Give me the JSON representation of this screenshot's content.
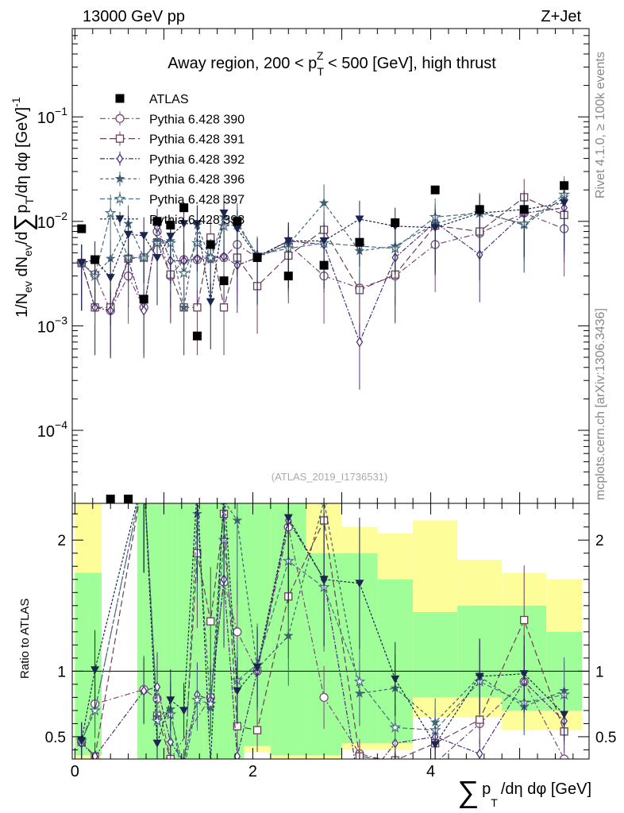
{
  "header": {
    "left": "13000 GeV pp",
    "right": "Z+Jet",
    "side_top": "Rivet 4.1.0, ≥ 100k events",
    "side_bottom": "mcplots.cern.ch [arXiv:1306.3436]",
    "watermark": "(ATLAS_2019_I1736531)"
  },
  "colors": {
    "atlas": "#000000",
    "p390": "#7b4a7a",
    "p391": "#6b3f55",
    "p392": "#4b2f7a",
    "p396": "#3e6072",
    "p397": "#4a6f7f",
    "p398": "#1c2450",
    "band_green": "#9ffe97",
    "band_yellow": "#fdfd9a"
  },
  "chart_data": {
    "type": "scatter",
    "title": "Away region, 200 < p_T^Z < 500 [GeV], high thrust",
    "title_parts": {
      "pre": "Away region, 200 < p",
      "sub": "T",
      "sup": "Z",
      "post": " < 500 [GeV], high thrust"
    },
    "xlabel": "∑ p_T /dη dφ [GeV]",
    "xlabel_parts": {
      "sum": "∑",
      "p": "p",
      "sub": "T",
      "rest": "/dη dφ [GeV]"
    },
    "ylabel_main": "1/N_ev dN_ev/d∑ p_T /dη dφ [GeV]^-1",
    "ylabel_parts": {
      "a": "1/N",
      "a_sub": "ev",
      "b": " dN",
      "b_sub": "ev",
      "c": "/d",
      "sum": "∑",
      "p": "p",
      "p_sub": "T",
      "d": "/dη dφ  [GeV]",
      "exp": "-1"
    },
    "ylabel_ratio": "Ratio to ATLAS",
    "xlim": [
      -0.03,
      5.78
    ],
    "ylim_main": [
      2e-05,
      0.7
    ],
    "ylim_ratio": [
      0.33,
      2.28
    ],
    "yscale_main": "log",
    "main_ticks": [
      {
        "value": 0.1,
        "base": "10",
        "exp": "−1"
      },
      {
        "value": 0.01,
        "base": "10",
        "exp": "−2"
      },
      {
        "value": 0.001,
        "base": "10",
        "exp": "−3"
      },
      {
        "value": 0.0001,
        "base": "10",
        "exp": "−4"
      }
    ],
    "x_ticks": [
      0,
      2,
      4
    ],
    "x_tick_labels": [
      "0",
      "2",
      "4"
    ],
    "ratio_ticks": [
      0.5,
      1,
      2
    ],
    "ratio_tick_labels": [
      "0.5",
      "1",
      "2"
    ],
    "legend_position": "top-left",
    "bins": [
      [
        0,
        0.15
      ],
      [
        0.15,
        0.3
      ],
      [
        0.3,
        0.5
      ],
      [
        0.5,
        0.7
      ],
      [
        0.7,
        0.85
      ],
      [
        0.85,
        1.0
      ],
      [
        1.0,
        1.15
      ],
      [
        1.15,
        1.3
      ],
      [
        1.3,
        1.45
      ],
      [
        1.45,
        1.6
      ],
      [
        1.6,
        1.75
      ],
      [
        1.75,
        1.9
      ],
      [
        1.9,
        2.2
      ],
      [
        2.2,
        2.6
      ],
      [
        2.6,
        3.0
      ],
      [
        3.0,
        3.4
      ],
      [
        3.4,
        3.8
      ],
      [
        3.8,
        4.3
      ],
      [
        4.3,
        4.8
      ],
      [
        4.8,
        5.3
      ],
      [
        5.3,
        5.7
      ]
    ],
    "x": [
      0.075,
      0.225,
      0.4,
      0.6,
      0.775,
      0.925,
      1.075,
      1.225,
      1.375,
      1.525,
      1.675,
      1.825,
      2.05,
      2.4,
      2.8,
      3.2,
      3.6,
      4.05,
      4.55,
      5.05,
      5.5
    ],
    "series": [
      {
        "name": "ATLAS",
        "marker": "square-filled",
        "colorKey": "atlas",
        "values": [
          0.0085,
          0.0043,
          2.2e-05,
          2.2e-05,
          0.0018,
          0.01,
          0.0092,
          0.0135,
          0.0008,
          0.006,
          0.0027,
          0.01,
          0.0045,
          0.003,
          0.0038,
          0.0063,
          0.0097,
          0.02,
          0.013,
          0.013,
          0.022
        ]
      },
      {
        "name": "Pythia 6.428 390",
        "marker": "circle-open",
        "colorKey": "p390",
        "dash": "7,3,2,3",
        "values": [
          0.004,
          0.0031,
          0.0014,
          0.003,
          0.0015,
          0.008,
          0.003,
          0.0043,
          0.0043,
          0.0044,
          0.0045,
          0.006,
          0.0045,
          0.006,
          0.003,
          0.0023,
          0.003,
          0.006,
          0.0077,
          0.012,
          0.0085
        ]
      },
      {
        "name": "Pythia 6.428 391",
        "marker": "square-open",
        "colorKey": "p391",
        "dash": "8,4",
        "values": [
          0.004,
          0.0015,
          0.0015,
          0.0044,
          0.0045,
          0.0063,
          0.0031,
          0.0015,
          0.0015,
          0.007,
          0.0015,
          0.0045,
          0.0024,
          0.0047,
          0.0083,
          0.0022,
          0.0031,
          0.0091,
          0.008,
          0.017,
          0.0115
        ]
      },
      {
        "name": "Pythia 6.428 392",
        "marker": "diamond-open",
        "colorKey": "p392",
        "dash": "6,2,2,2",
        "values": [
          0.004,
          0.0015,
          0.0014,
          0.0043,
          0.0014,
          0.0088,
          0.0042,
          0.0042,
          0.0044,
          0.0045,
          0.0046,
          0.0038,
          0.0045,
          0.0065,
          0.006,
          0.0007,
          0.0045,
          0.0098,
          0.0048,
          0.012,
          0.0135
        ]
      },
      {
        "name": "Pythia 6.428 396",
        "marker": "star-filled",
        "colorKey": "p396",
        "dash": "4,3",
        "values": [
          0.004,
          0.003,
          0.0044,
          0.0095,
          0.0045,
          0.0065,
          0.0065,
          0.0015,
          0.0092,
          0.0043,
          0.011,
          0.01,
          0.0046,
          0.006,
          0.015,
          0.0052,
          0.0058,
          0.0095,
          0.0125,
          0.0092,
          0.017
        ]
      },
      {
        "name": "Pythia 6.428 397",
        "marker": "star-open",
        "colorKey": "p397",
        "dash": "6,3",
        "values": [
          0.004,
          0.003,
          0.012,
          0.0045,
          0.0045,
          0.0062,
          0.0062,
          0.0032,
          0.0062,
          0.0045,
          0.009,
          0.0093,
          0.0048,
          0.0055,
          0.0062,
          0.0058,
          0.0055,
          0.011,
          0.012,
          0.0095,
          0.018
        ]
      },
      {
        "name": "Pythia 6.428 398",
        "marker": "triangle-down-filled",
        "colorKey": "p398",
        "dash": "3,2",
        "values": [
          0.004,
          0.0043,
          0.0029,
          0.0075,
          0.0073,
          0.0045,
          0.0072,
          0.0095,
          0.0095,
          0.0017,
          0.012,
          0.0085,
          0.0046,
          0.0065,
          0.0065,
          0.0105,
          0.009,
          0.0087,
          0.012,
          0.013,
          0.015
        ]
      }
    ],
    "ratios": [
      [
        0.46,
        0.75,
        null,
        null,
        0.86,
        0.79,
        0.33,
        null,
        null,
        0.8,
        1.68,
        1.3,
        1.0,
        2.1,
        0.8,
        0.37,
        0.3,
        0.3,
        0.6,
        0.92,
        0.33
      ],
      [
        0.46,
        0.35,
        null,
        null,
        2.5,
        0.66,
        0.33,
        0.23,
        1.9,
        1.38,
        2.2,
        0.58,
        0.55,
        1.57,
        2.15,
        0.35,
        0.32,
        0.45,
        0.63,
        1.39,
        0.54
      ],
      [
        0.45,
        0.35,
        null,
        null,
        0.85,
        0.88,
        0.46,
        0.31,
        0.82,
        0.78,
        1.7,
        0.35,
        1.0,
        2.15,
        1.7,
        0.11,
        0.45,
        0.5,
        0.37,
        0.92,
        0.62
      ],
      [
        0.47,
        0.7,
        null,
        null,
        2.5,
        0.65,
        0.71,
        0.11,
        2.2,
        0.72,
        2.3,
        2.15,
        1.02,
        1.27,
        2.3,
        0.83,
        0.87,
        0.61,
        0.96,
        0.73,
        0.85
      ],
      [
        0.47,
        0.7,
        null,
        null,
        2.5,
        0.62,
        0.67,
        0.24,
        0.78,
        0.75,
        2.0,
        0.93,
        1.05,
        1.84,
        1.64,
        0.92,
        0.57,
        0.55,
        0.92,
        0.76,
        0.82
      ],
      [
        0.47,
        1.01,
        null,
        null,
        2.5,
        0.45,
        0.78,
        0.7,
        2.4,
        0.3,
        2.4,
        0.85,
        1.03,
        2.17,
        1.7,
        1.67,
        0.94,
        0.44,
        0.96,
        0.98,
        0.67
      ]
    ],
    "band_inner": [
      1.75,
      1.75,
      2.4,
      2.4,
      2.4,
      2.4,
      2.4,
      2.4,
      2.4,
      2.4,
      2.4,
      2.4,
      2.4,
      2.4,
      1.9,
      1.9,
      1.7,
      1.45,
      1.5,
      1.5,
      1.3
    ],
    "band_outer": [
      2.4,
      2.4,
      2.4,
      2.4,
      2.4,
      2.4,
      2.4,
      2.4,
      2.4,
      2.4,
      2.4,
      2.4,
      2.4,
      2.4,
      2.4,
      2.1,
      2.05,
      2.15,
      1.85,
      1.75,
      1.7
    ],
    "band_outer_low": [
      0.3,
      0.3,
      0.3,
      0.3,
      0.3,
      0.3,
      0.3,
      0.3,
      0.3,
      0.3,
      0.3,
      0.3,
      0.38,
      0.3,
      0.3,
      0.4,
      0.4,
      0.65,
      0.65,
      0.55,
      0.55
    ],
    "band_inner_low": [
      0.36,
      0.36,
      0.3,
      0.3,
      0.3,
      0.3,
      0.3,
      0.3,
      0.3,
      0.3,
      0.3,
      0.3,
      0.43,
      0.36,
      0.36,
      0.45,
      0.45,
      0.8,
      0.8,
      0.7,
      0.7
    ]
  }
}
